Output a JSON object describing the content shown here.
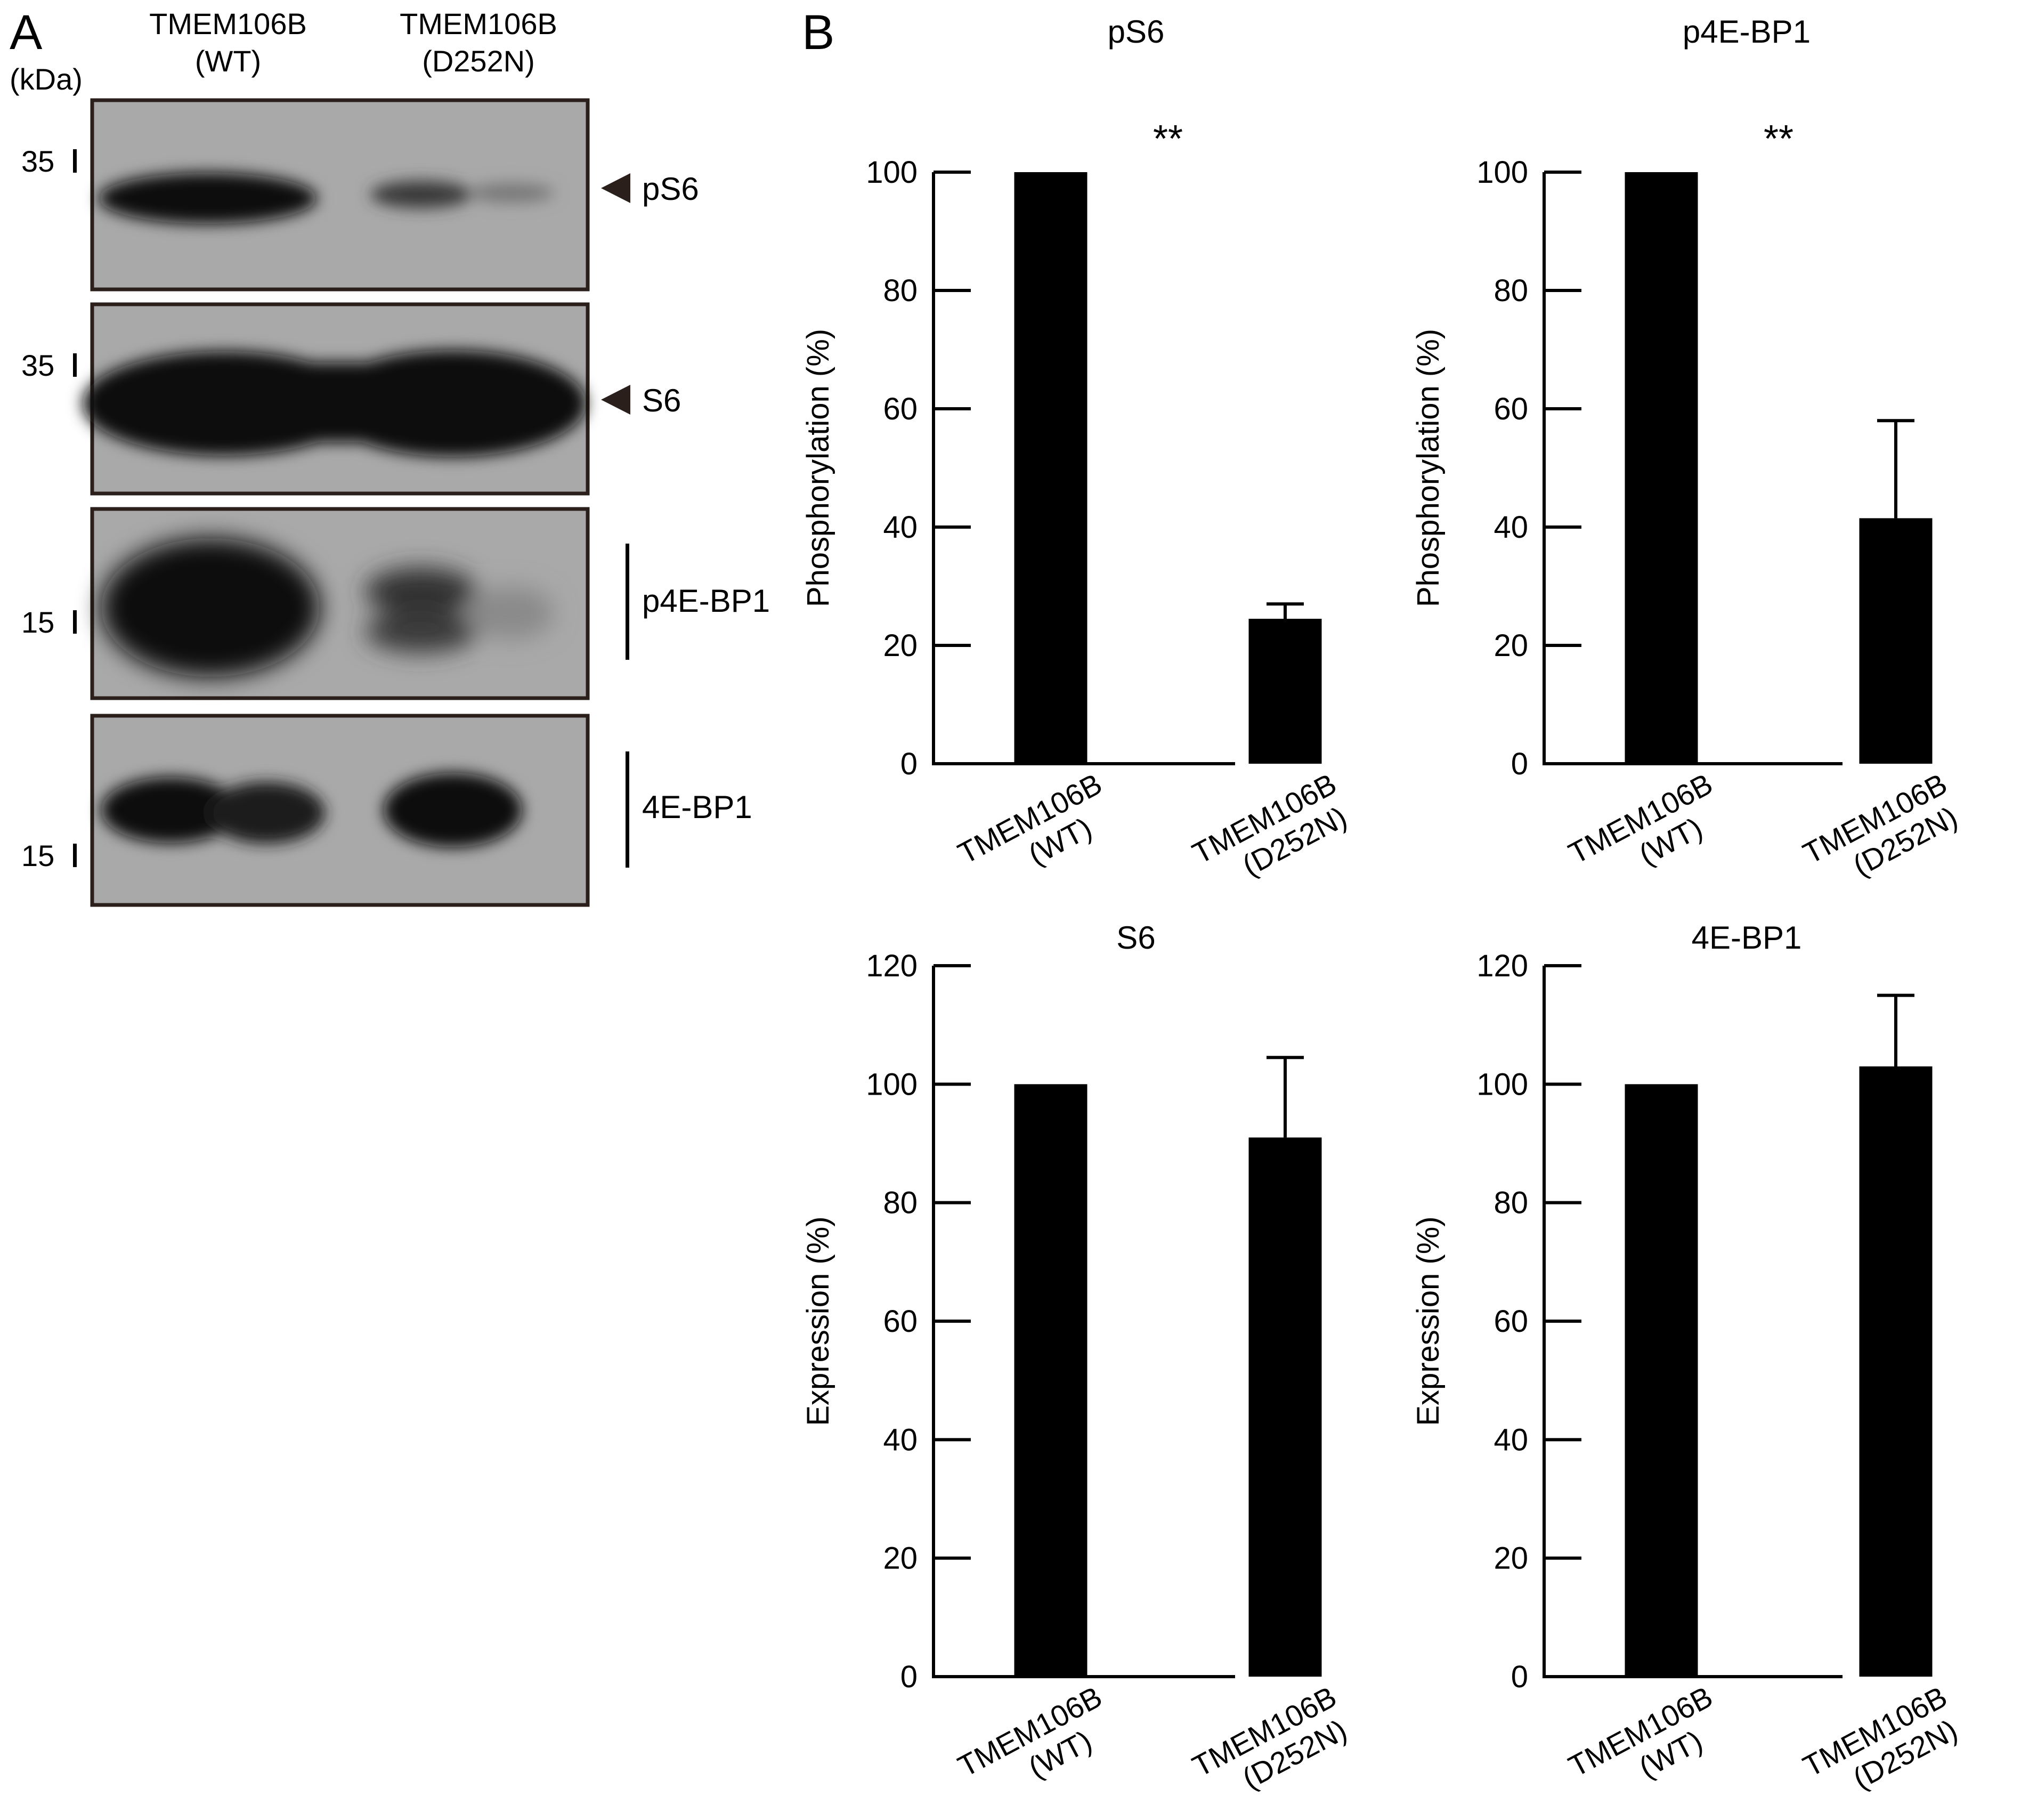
{
  "panel_a": {
    "letter": "A",
    "kda_label": "(kDa)",
    "lanes": [
      {
        "line1": "TMEM106B",
        "line2": "(WT)"
      },
      {
        "line1": "TMEM106B",
        "line2": "(D252N)"
      }
    ],
    "blots": [
      {
        "label": "pS6",
        "marker": "arrow",
        "mw_labels": [
          "35"
        ]
      },
      {
        "label": "S6",
        "marker": "arrow",
        "mw_labels": [
          "35"
        ]
      },
      {
        "label": "p4E-BP1",
        "marker": "bar",
        "mw_labels": [
          "15"
        ]
      },
      {
        "label": "4E-BP1",
        "marker": "bar",
        "mw_labels": [
          "15"
        ]
      }
    ],
    "colors": {
      "blot_bg": "#a9a9a9",
      "band": "#111111",
      "frame": "#2a1f1a"
    }
  },
  "panel_b": {
    "letter": "B"
  },
  "chart_data": [
    {
      "type": "bar",
      "title": "pS6",
      "ylabel": "Phosphorylation (%)",
      "categories": [
        [
          "TMEM106B",
          "(WT)"
        ],
        [
          "TMEM106B",
          "(D252N)"
        ]
      ],
      "values": [
        100,
        24.5
      ],
      "errors": [
        0,
        2.5
      ],
      "ylim": [
        0,
        100
      ],
      "yticks": [
        0,
        20,
        40,
        60,
        80,
        100
      ],
      "significance": "**",
      "bar_color": "#000000"
    },
    {
      "type": "bar",
      "title": "p4E-BP1",
      "ylabel": "Phosphorylation (%)",
      "categories": [
        [
          "TMEM106B",
          "(WT)"
        ],
        [
          "TMEM106B",
          "(D252N)"
        ]
      ],
      "values": [
        100,
        41.5
      ],
      "errors": [
        0,
        16.5
      ],
      "ylim": [
        0,
        100
      ],
      "yticks": [
        0,
        20,
        40,
        60,
        80,
        100
      ],
      "significance": "**",
      "bar_color": "#000000"
    },
    {
      "type": "bar",
      "title": "S6",
      "ylabel": "Expression (%)",
      "categories": [
        [
          "TMEM106B",
          "(WT)"
        ],
        [
          "TMEM106B",
          "(D252N)"
        ]
      ],
      "values": [
        100,
        91
      ],
      "errors": [
        0,
        13.5
      ],
      "ylim": [
        0,
        120
      ],
      "yticks": [
        0,
        20,
        40,
        60,
        80,
        100,
        120
      ],
      "significance": "",
      "bar_color": "#000000"
    },
    {
      "type": "bar",
      "title": "4E-BP1",
      "ylabel": "Expression (%)",
      "categories": [
        [
          "TMEM106B",
          "(WT)"
        ],
        [
          "TMEM106B",
          "(D252N)"
        ]
      ],
      "values": [
        100,
        103
      ],
      "errors": [
        0,
        12
      ],
      "ylim": [
        0,
        120
      ],
      "yticks": [
        0,
        20,
        40,
        60,
        80,
        100,
        120
      ],
      "significance": "",
      "bar_color": "#000000"
    }
  ]
}
